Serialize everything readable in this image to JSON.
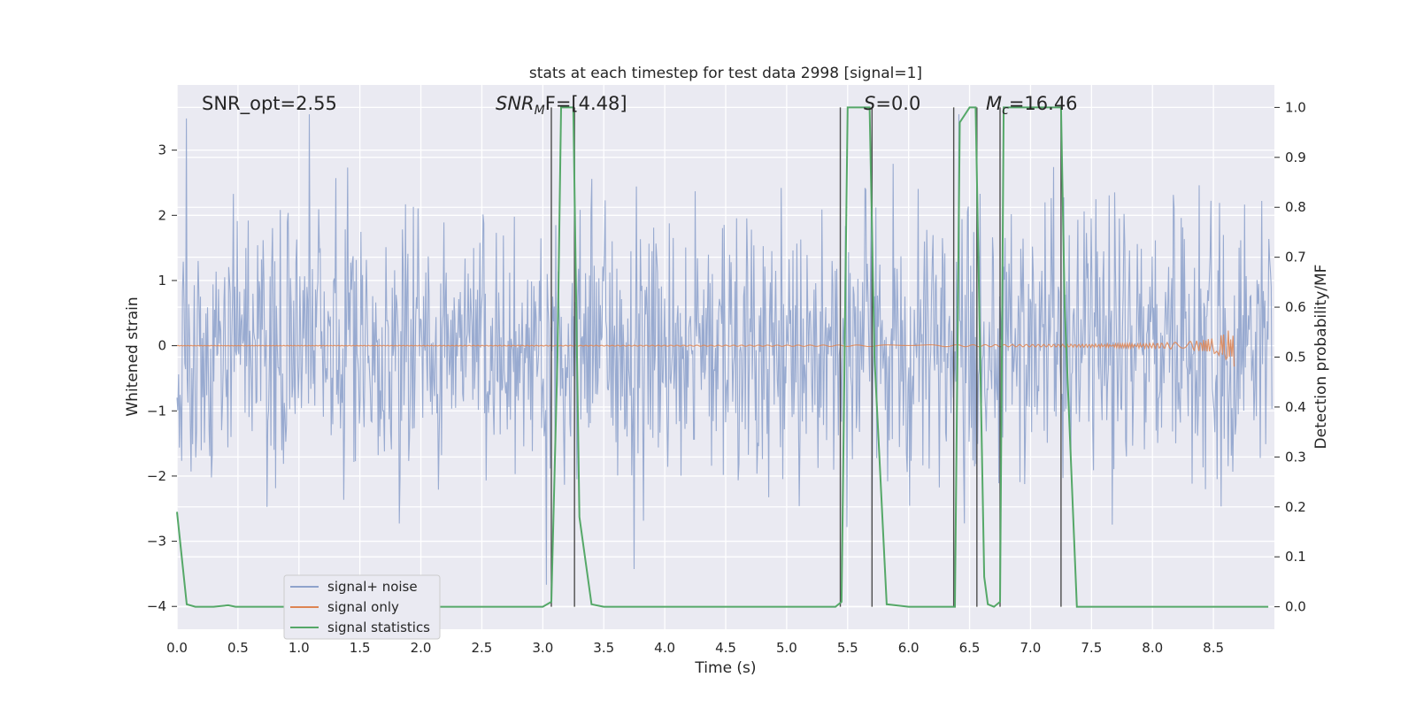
{
  "chart_data": {
    "type": "line",
    "title": "stats at each timestep for test data 2998 [signal=1]",
    "xlabel": "Time (s)",
    "ylabel": "Whitened strain",
    "y2label": "Detection probability/MF",
    "xlim": [
      0.0,
      9.0
    ],
    "ylim": [
      -4.35,
      4.0
    ],
    "y2lim": [
      -0.045,
      1.045
    ],
    "x_ticks": [
      "0.0",
      "0.5",
      "1.0",
      "1.5",
      "2.0",
      "2.5",
      "3.0",
      "3.5",
      "4.0",
      "4.5",
      "5.0",
      "5.5",
      "6.0",
      "6.5",
      "7.0",
      "7.5",
      "8.0",
      "8.5"
    ],
    "y_ticks": [
      "3",
      "2",
      "1",
      "0",
      "−1",
      "−2",
      "−3",
      "−4"
    ],
    "y2_ticks": [
      "1.0",
      "0.9",
      "0.8",
      "0.7",
      "0.6",
      "0.5",
      "0.4",
      "0.3",
      "0.2",
      "0.1",
      "0.0"
    ],
    "grid": true,
    "legend_position": "lower-left",
    "annotations": [
      "SNR_opt=2.55",
      "SNR",
      "M",
      "F=[4.48]",
      "S",
      "=0.0",
      "M",
      "c",
      "=16.46"
    ],
    "series": [
      {
        "name": "signal+ noise",
        "color": "#8fa3cc",
        "description_values": {
          "typical_range": [
            -2.5,
            2.5
          ],
          "max_peak": 3.55,
          "min_trough": -4.0
        }
      },
      {
        "name": "signal only",
        "color": "#dd8452",
        "chirp_end_time": 8.67,
        "peak_amplitude": 0.45
      },
      {
        "name": "signal statistics",
        "color": "#55a868",
        "x": [
          0.0,
          0.08,
          0.15,
          0.3,
          0.42,
          0.48,
          0.6,
          3.0,
          3.07,
          3.12,
          3.15,
          3.25,
          3.3,
          3.4,
          3.5,
          5.4,
          5.45,
          5.5,
          5.68,
          5.72,
          5.82,
          6.0,
          6.38,
          6.42,
          6.5,
          6.55,
          6.62,
          6.65,
          6.7,
          6.75,
          6.78,
          6.82,
          7.0,
          7.25,
          7.28,
          7.38,
          8.95
        ],
        "y": [
          0.19,
          0.005,
          0.0,
          0.0,
          0.003,
          0.0,
          0.0,
          0.0,
          0.01,
          0.5,
          1.0,
          1.0,
          0.18,
          0.005,
          0.0,
          0.0,
          0.01,
          1.0,
          1.0,
          0.5,
          0.005,
          0.0,
          0.0,
          0.97,
          1.0,
          1.0,
          0.06,
          0.005,
          0.0,
          0.01,
          1.0,
          1.0,
          1.0,
          1.0,
          0.6,
          0.0,
          0.0
        ]
      }
    ],
    "vertical_lines_x": [
      3.07,
      3.26,
      5.44,
      5.7,
      6.37,
      6.56,
      6.75,
      7.25
    ]
  }
}
